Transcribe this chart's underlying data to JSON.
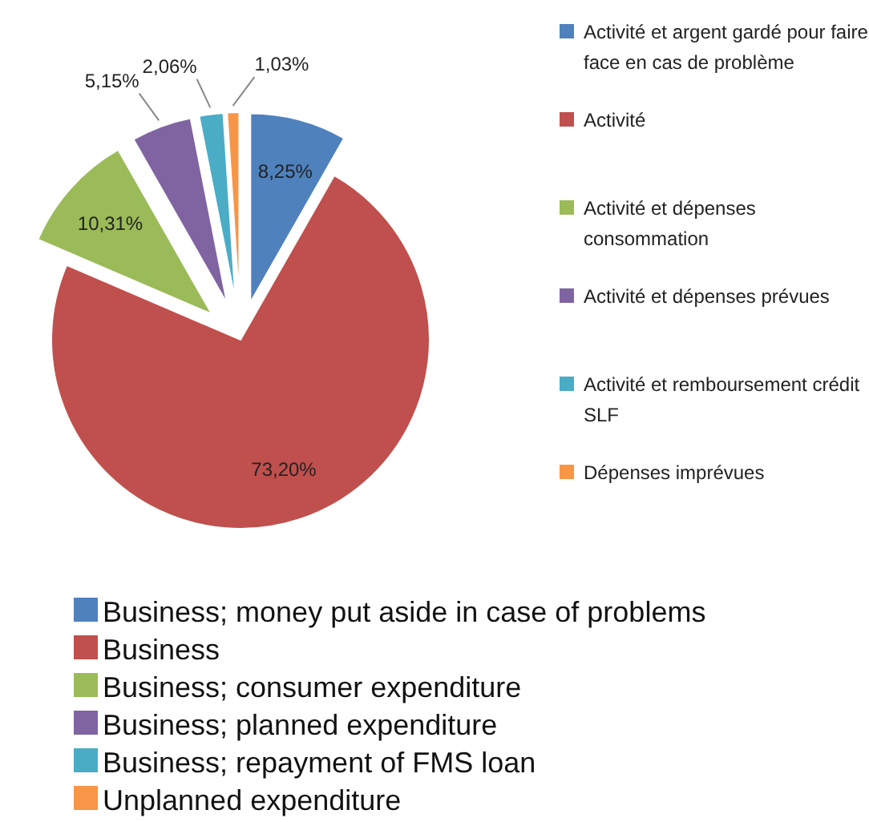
{
  "chart_data": {
    "type": "pie",
    "categories": [
      "Activité et argent gardé pour faire face en cas de problème",
      "Activité",
      "Activité et dépenses consommation",
      "Activité et dépenses prévues",
      "Activité et remboursement crédit SLF",
      "Dépenses imprévues"
    ],
    "values": [
      8.25,
      73.2,
      10.31,
      5.15,
      2.06,
      1.03
    ],
    "value_labels": [
      "8,25%",
      "73,20%",
      "10,31%",
      "5,15%",
      "2,06%",
      "1,03%"
    ],
    "colors": [
      "#4f81bd",
      "#c0504d",
      "#9bbb59",
      "#8064a2",
      "#4bacc6",
      "#f79646"
    ],
    "legend": "right",
    "annotations": [
      "Business; money put aside in case of problems",
      "Business",
      "Business; consumer expenditure",
      "Business; planned expenditure",
      "Business; repayment of FMS loan",
      "Unplanned expenditure"
    ]
  }
}
